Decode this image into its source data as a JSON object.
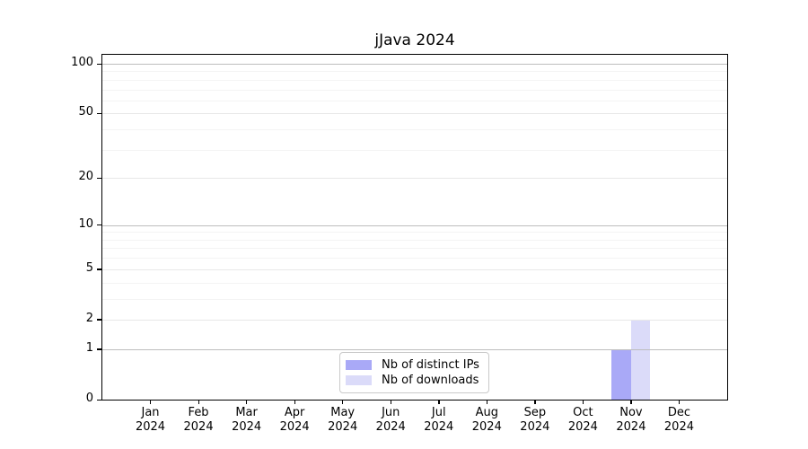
{
  "chart_data": {
    "type": "bar",
    "title": "jJava 2024",
    "categories": [
      "Jan",
      "Feb",
      "Mar",
      "Apr",
      "May",
      "Jun",
      "Jul",
      "Aug",
      "Sep",
      "Oct",
      "Nov",
      "Dec"
    ],
    "year_label": "2024",
    "series": [
      {
        "name": "Nb of distinct IPs",
        "color": "#a9a9f7",
        "values": [
          0,
          0,
          0,
          0,
          0,
          0,
          0,
          0,
          0,
          0,
          1,
          0
        ]
      },
      {
        "name": "Nb of downloads",
        "color": "#dbdbf9",
        "values": [
          0,
          0,
          0,
          0,
          0,
          0,
          0,
          0,
          0,
          0,
          2,
          0
        ]
      }
    ],
    "xlabel": "",
    "ylabel": "",
    "yscale": "log1p",
    "ylim": [
      0,
      113
    ],
    "y_ticks": [
      0,
      1,
      2,
      5,
      10,
      20,
      50,
      100
    ],
    "grid": true,
    "legend_position": "lower center",
    "grid_major_color": "#bdbdbd",
    "grid_mid_color": "#e8e8e8",
    "grid_minor_color": "#f4f4f4"
  }
}
